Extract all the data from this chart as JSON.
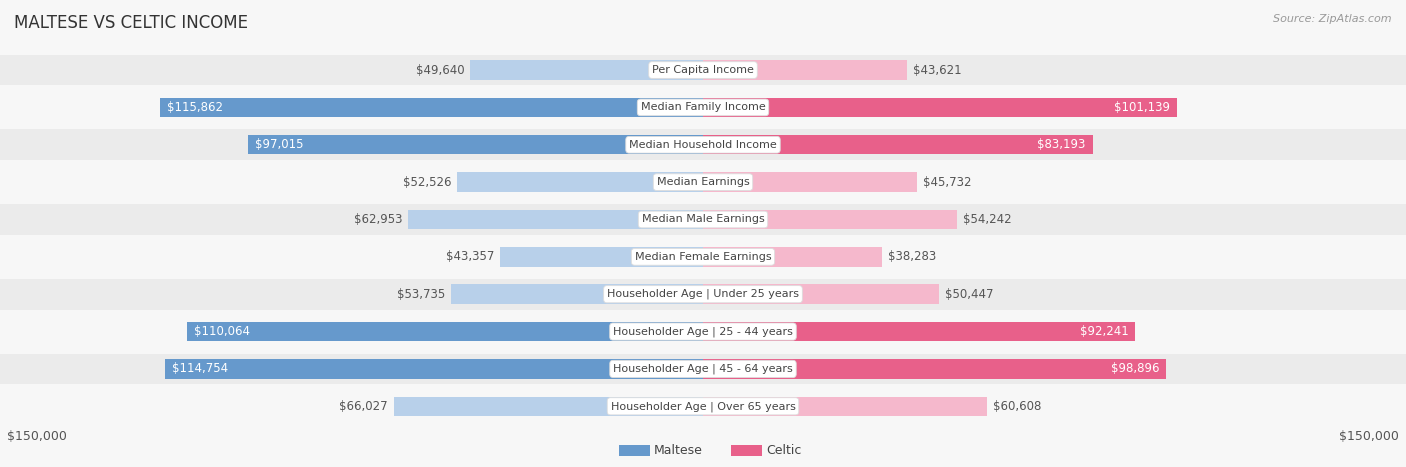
{
  "title": "MALTESE VS CELTIC INCOME",
  "source": "Source: ZipAtlas.com",
  "categories": [
    "Per Capita Income",
    "Median Family Income",
    "Median Household Income",
    "Median Earnings",
    "Median Male Earnings",
    "Median Female Earnings",
    "Householder Age | Under 25 years",
    "Householder Age | 25 - 44 years",
    "Householder Age | 45 - 64 years",
    "Householder Age | Over 65 years"
  ],
  "maltese_values": [
    49640,
    115862,
    97015,
    52526,
    62953,
    43357,
    53735,
    110064,
    114754,
    66027
  ],
  "celtic_values": [
    43621,
    101139,
    83193,
    45732,
    54242,
    38283,
    50447,
    92241,
    98896,
    60608
  ],
  "maltese_labels": [
    "$49,640",
    "$115,862",
    "$97,015",
    "$52,526",
    "$62,953",
    "$43,357",
    "$53,735",
    "$110,064",
    "$114,754",
    "$66,027"
  ],
  "celtic_labels": [
    "$43,621",
    "$101,139",
    "$83,193",
    "$45,732",
    "$54,242",
    "$38,283",
    "$50,447",
    "$92,241",
    "$98,896",
    "$60,608"
  ],
  "maltese_color_light": "#b8d0ea",
  "maltese_color_dark": "#6699cc",
  "celtic_color_light": "#f5b8cc",
  "celtic_color_dark": "#e8608a",
  "axis_limit": 150000,
  "background_color": "#f7f7f7",
  "row_even_color": "#ebebeb",
  "row_odd_color": "#f7f7f7",
  "label_fontsize": 8.5,
  "title_fontsize": 12,
  "category_fontsize": 8.0,
  "source_fontsize": 8.0
}
